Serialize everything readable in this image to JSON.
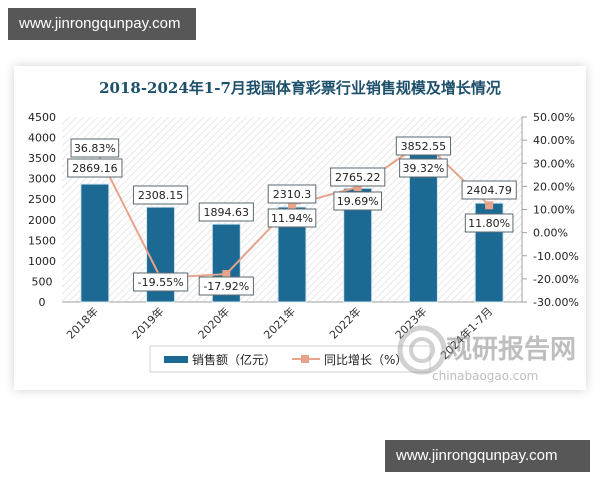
{
  "banners": {
    "top": "www.jinrongqunpay.com",
    "bottom": "www.jinrongqunpay.com"
  },
  "chart_data": {
    "type": "bar",
    "title": "2018-2024年1-7月我国体育彩票行业销售规模及增长情况",
    "categories": [
      "2018年",
      "2019年",
      "2020年",
      "2021年",
      "2022年",
      "2023年",
      "2024年1-7月"
    ],
    "series": [
      {
        "name": "销售额（亿元）",
        "type": "bar",
        "axis": "left",
        "color": "#1c6a93",
        "values": [
          2869.16,
          2308.15,
          1894.63,
          2310.3,
          2765.22,
          3852.55,
          2404.79
        ],
        "labels": [
          "2869.16",
          "2308.15",
          "1894.63",
          "2310.3",
          "2765.22",
          "3852.55",
          "2404.79"
        ]
      },
      {
        "name": "同比增长（%）",
        "type": "line",
        "axis": "right",
        "color": "#e8a48a",
        "values": [
          36.83,
          -19.55,
          -17.92,
          11.94,
          19.69,
          39.32,
          11.8
        ],
        "labels": [
          "36.83%",
          "-19.55%",
          "-17.92%",
          "11.94%",
          "19.69%",
          "39.32%",
          "11.80%"
        ]
      }
    ],
    "y_left": {
      "min": 0,
      "max": 4500,
      "step": 500,
      "ticks": [
        "0",
        "500",
        "1000",
        "1500",
        "2000",
        "2500",
        "3000",
        "3500",
        "4000",
        "4500"
      ]
    },
    "y_right": {
      "min": -30,
      "max": 50,
      "step": 10,
      "ticks": [
        "-30.00%",
        "-20.00%",
        "-10.00%",
        "0.00%",
        "10.00%",
        "20.00%",
        "30.00%",
        "40.00%",
        "50.00%"
      ]
    },
    "xlabel": "",
    "ylabel": "",
    "grid": false,
    "legend_position": "bottom"
  },
  "legend": {
    "bar_label": "销售额（亿元）",
    "line_label": "同比增长（%）"
  },
  "watermark": {
    "brand": "观研报告网",
    "url": "chinabaogao.com"
  },
  "colors": {
    "bar": "#1c6a93",
    "line": "#e8a48a",
    "title": "#1b4f6a",
    "banner": "#575757"
  }
}
